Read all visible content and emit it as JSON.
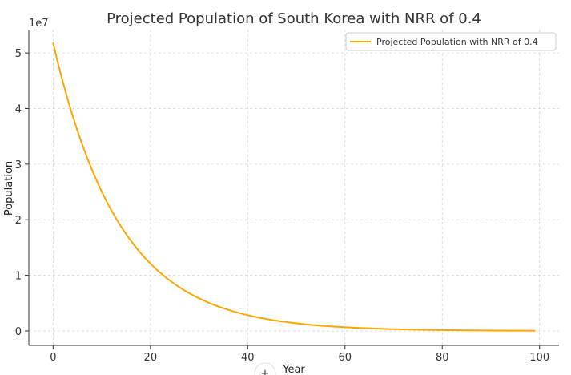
{
  "chart_data": {
    "type": "line",
    "title": "Projected Population of South Korea with NRR of 0.4",
    "xlabel": "Year",
    "ylabel": "Population",
    "y_offset_label": "1e7",
    "xlim": [
      -5,
      104
    ],
    "ylim": [
      -2600000,
      54200000
    ],
    "x_ticks": [
      0,
      20,
      40,
      60,
      80,
      100
    ],
    "x_tick_labels": [
      "0",
      "20",
      "40",
      "60",
      "80",
      "100"
    ],
    "y_ticks": [
      0,
      10000000,
      20000000,
      30000000,
      40000000,
      50000000
    ],
    "y_tick_labels": [
      "0",
      "1",
      "2",
      "3",
      "4",
      "5"
    ],
    "grid": true,
    "legend_position": "top-right",
    "series": [
      {
        "name": "Projected Population with NRR of 0.4",
        "color": "#ffa500",
        "x": [
          0,
          1,
          2,
          3,
          4,
          5,
          6,
          7,
          8,
          9,
          10,
          11,
          12,
          13,
          14,
          15,
          16,
          17,
          18,
          19,
          20,
          21,
          22,
          23,
          24,
          25,
          26,
          27,
          28,
          29,
          30,
          31,
          32,
          33,
          34,
          35,
          36,
          37,
          38,
          39,
          40,
          41,
          42,
          43,
          44,
          45,
          46,
          47,
          48,
          49,
          50,
          51,
          52,
          53,
          54,
          55,
          56,
          57,
          58,
          59,
          60,
          61,
          62,
          63,
          64,
          65,
          66,
          67,
          68,
          69,
          70,
          71,
          72,
          73,
          74,
          75,
          76,
          77,
          78,
          79,
          80,
          81,
          82,
          83,
          84,
          85,
          86,
          87,
          88,
          89,
          90,
          91,
          92,
          93,
          94,
          95,
          96,
          97,
          98,
          99
        ],
        "y": [
          51780000,
          48150000,
          44780000,
          41640000,
          38720000,
          36010000,
          33490000,
          31140000,
          28960000,
          26930000,
          25040000,
          23290000,
          21650000,
          20140000,
          18730000,
          17410000,
          16190000,
          15060000,
          14000000,
          13020000,
          12110000,
          11260000,
          10470000,
          9740000,
          9060000,
          8420000,
          7830000,
          7280000,
          6770000,
          6300000,
          5860000,
          5450000,
          5060000,
          4710000,
          4380000,
          4070000,
          3790000,
          3520000,
          3280000,
          3050000,
          2830000,
          2630000,
          2450000,
          2280000,
          2120000,
          1970000,
          1830000,
          1700000,
          1590000,
          1470000,
          1370000,
          1270000,
          1190000,
          1100000,
          1020000,
          954000,
          887000,
          825000,
          767000,
          714000,
          664000,
          617000,
          574000,
          534000,
          496000,
          462000,
          429000,
          399000,
          371000,
          345000,
          321000,
          299000,
          278000,
          258000,
          240000,
          223000,
          208000,
          193000,
          180000,
          167000,
          155000,
          144000,
          134000,
          125000,
          116000,
          108000,
          101000,
          94000,
          87000,
          81000,
          75000,
          70000,
          65000,
          61000,
          56000,
          52000,
          49000,
          45000,
          42000,
          39000
        ]
      }
    ]
  },
  "overlay": {
    "icon": "plus-icon",
    "glyph": "+"
  }
}
